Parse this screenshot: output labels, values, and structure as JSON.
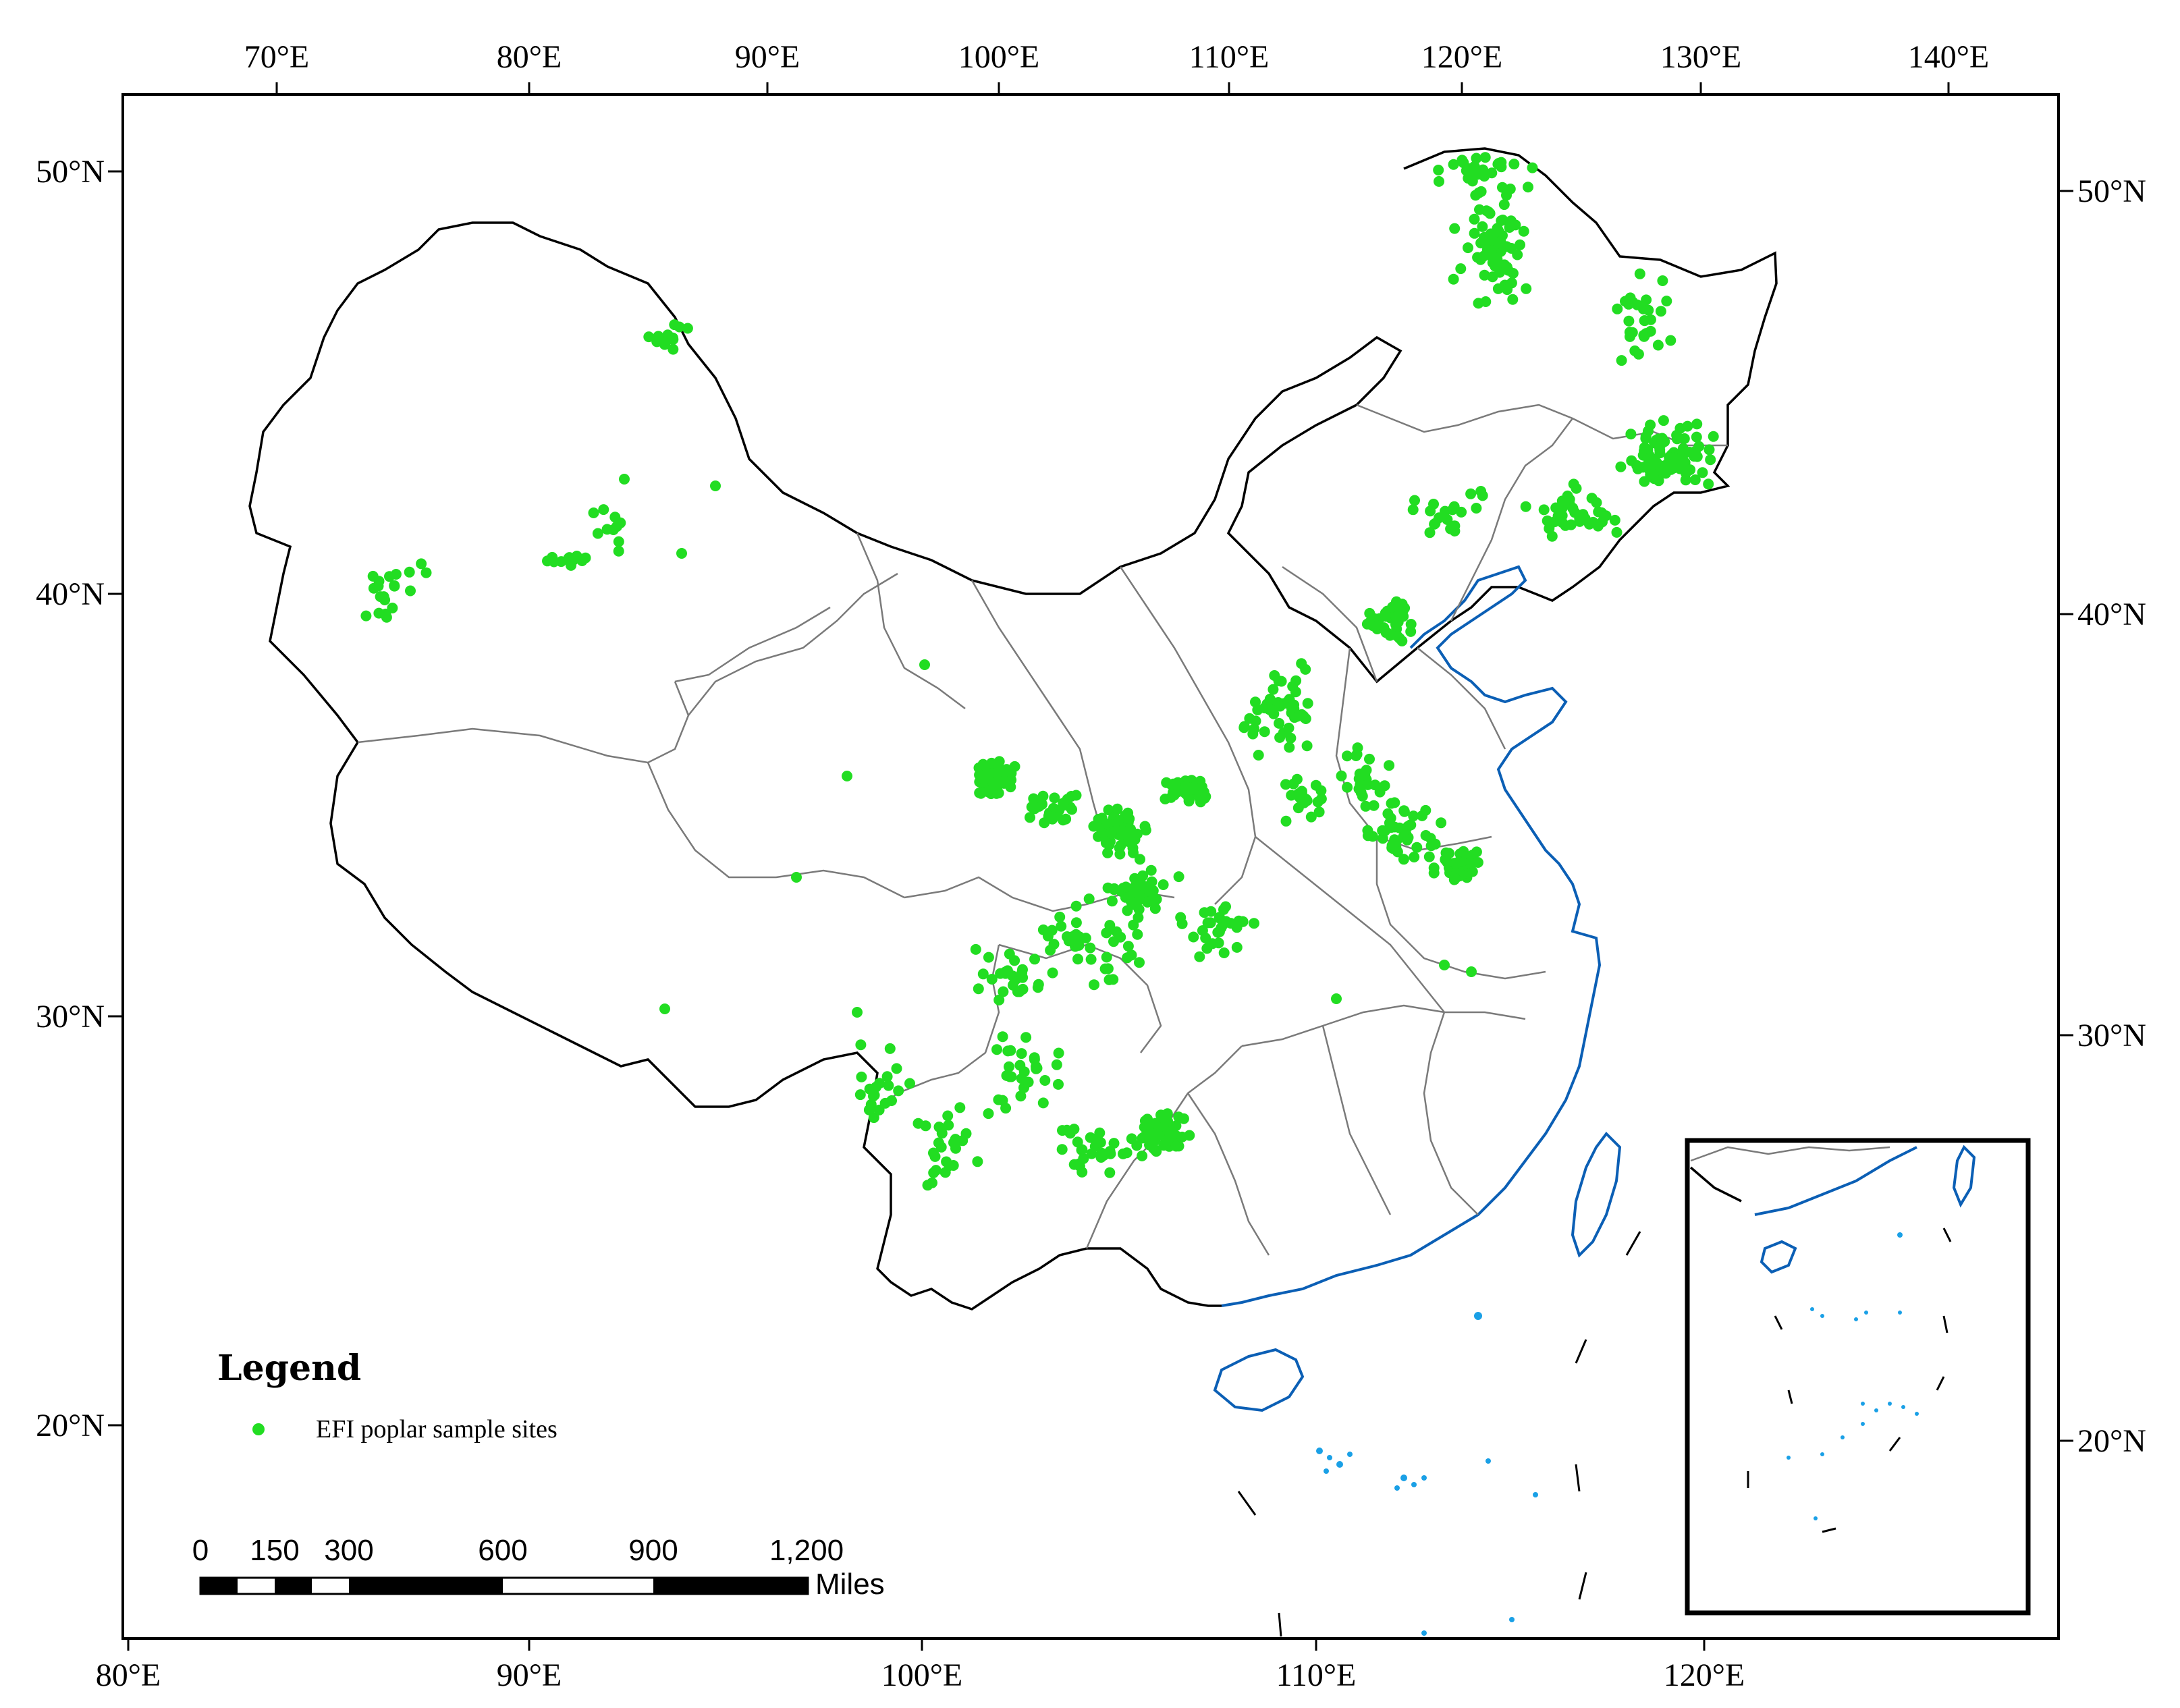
{
  "map": {
    "top_lon_labels": [
      "70°E",
      "80°E",
      "90°E",
      "100°E",
      "110°E",
      "120°E",
      "130°E",
      "140°E"
    ],
    "bottom_lon_labels": [
      "80°E",
      "90°E",
      "100°E",
      "110°E",
      "120°E"
    ],
    "left_lat_labels": [
      "50°N",
      "40°N",
      "30°N",
      "20°N"
    ],
    "right_lat_labels": [
      "50°N",
      "40°N",
      "30°N",
      "20°N"
    ],
    "colors": {
      "sample_site": "#22dd22",
      "national_border": "#000000",
      "province_border": "#7a7a7a",
      "coastline": "#0b5fb5",
      "islands": "#1aa0e6"
    }
  },
  "legend": {
    "title": "Legend",
    "entries": [
      {
        "label": "EFI poplar sample sites",
        "symbol": "green-dot"
      }
    ]
  },
  "scale_bar": {
    "ticks": [
      "0",
      "150",
      "300",
      "600",
      "900",
      "1,200"
    ],
    "unit": "Miles"
  }
}
